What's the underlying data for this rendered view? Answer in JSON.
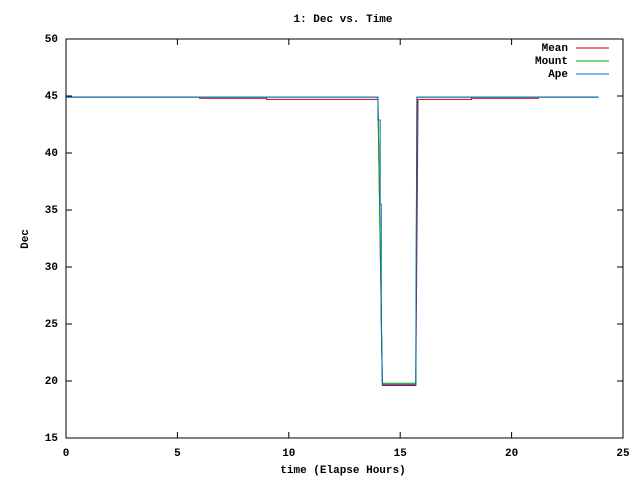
{
  "chart_data": {
    "type": "line",
    "title": "1: Dec vs. Time",
    "x_label": "time (Elapse Hours)",
    "y_label": "Dec",
    "xlim": [
      0,
      25
    ],
    "xticks": [
      0,
      5,
      10,
      15,
      20,
      25
    ],
    "ylim": [
      15,
      50
    ],
    "yticks": [
      15,
      20,
      25,
      30,
      35,
      40,
      45,
      50
    ],
    "grid": false,
    "legend": "top-right",
    "series": [
      {
        "name": "Mean",
        "color": "#cc0000",
        "x": [
          0,
          6,
          6,
          9,
          9,
          14,
          14.2,
          15.7,
          15.8,
          18.2,
          18.2,
          21.2,
          21.2,
          23.9
        ],
        "values": [
          44.9,
          44.9,
          44.8,
          44.8,
          44.7,
          44.7,
          19.6,
          19.6,
          44.7,
          44.7,
          44.8,
          44.8,
          44.9,
          44.9
        ]
      },
      {
        "name": "Mount",
        "color": "#00aa00",
        "x": [
          0,
          14,
          14.2,
          15.7,
          15.75,
          23.9
        ],
        "values": [
          44.9,
          44.9,
          19.8,
          19.8,
          44.9,
          44.9
        ]
      },
      {
        "name": "Ape",
        "color": "#0066cc",
        "x": [
          0,
          14,
          14,
          14.1,
          14.1,
          14.15,
          14.15,
          14.2,
          15.7,
          15.72,
          15.75,
          23.9
        ],
        "values": [
          44.9,
          44.9,
          42.9,
          42.9,
          35.5,
          35.5,
          25,
          19.7,
          19.7,
          32.3,
          44.9,
          44.9
        ]
      }
    ]
  }
}
